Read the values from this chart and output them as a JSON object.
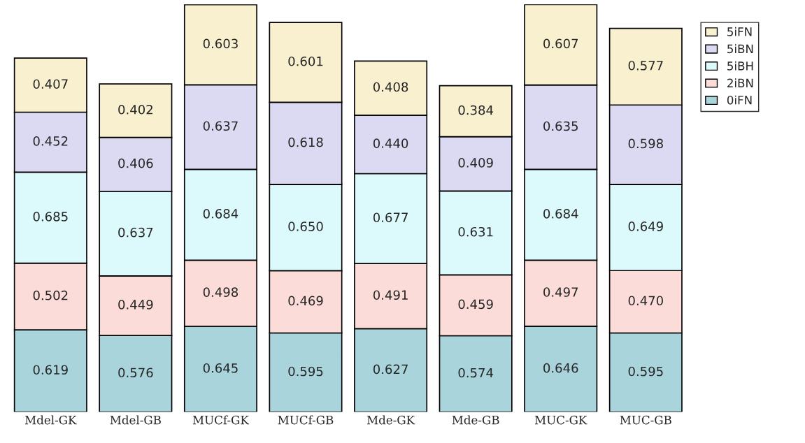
{
  "chart_data": {
    "type": "bar",
    "stacked": true,
    "legend": "top right",
    "grid": false,
    "categories": [
      "Mdel-GK",
      "Mdel-GB",
      "MUCf-GK",
      "MUCf-GB",
      "Mde-GK",
      "Mde-GB",
      "MUC-GK",
      "MUC-GB"
    ],
    "series": [
      {
        "name": "0iFN",
        "color": "#a9d4dc",
        "values": [
          0.619,
          0.576,
          0.645,
          0.595,
          0.627,
          0.574,
          0.646,
          0.595
        ],
        "value_labels": [
          "0.619",
          "0.576",
          "0.645",
          "0.595",
          "0.627",
          "0.574",
          "0.646",
          "0.595"
        ]
      },
      {
        "name": "2iBN",
        "color": "#fbdcd8",
        "values": [
          0.502,
          0.449,
          0.498,
          0.469,
          0.491,
          0.459,
          0.497,
          0.47
        ],
        "value_labels": [
          "0.502",
          "0.449",
          "0.498",
          "0.469",
          "0.491",
          "0.459",
          "0.497",
          "0.470"
        ]
      },
      {
        "name": "5iBH",
        "color": "#dcfafc",
        "values": [
          0.685,
          0.637,
          0.684,
          0.65,
          0.677,
          0.631,
          0.684,
          0.649
        ],
        "value_labels": [
          "0.685",
          "0.637",
          "0.684",
          "0.650",
          "0.677",
          "0.631",
          "0.684",
          "0.649"
        ]
      },
      {
        "name": "5iBN",
        "color": "#dcdaf2",
        "values": [
          0.452,
          0.406,
          0.637,
          0.618,
          0.44,
          0.409,
          0.635,
          0.598
        ],
        "value_labels": [
          "0.452",
          "0.406",
          "0.637",
          "0.618",
          "0.440",
          "0.409",
          "0.635",
          "0.598"
        ]
      },
      {
        "name": "5iFN",
        "color": "#f9f0cf",
        "values": [
          0.407,
          0.402,
          0.603,
          0.601,
          0.408,
          0.384,
          0.607,
          0.577
        ],
        "value_labels": [
          "0.407",
          "0.402",
          "0.603",
          "0.601",
          "0.408",
          "0.384",
          "0.607",
          "0.577"
        ]
      }
    ]
  }
}
